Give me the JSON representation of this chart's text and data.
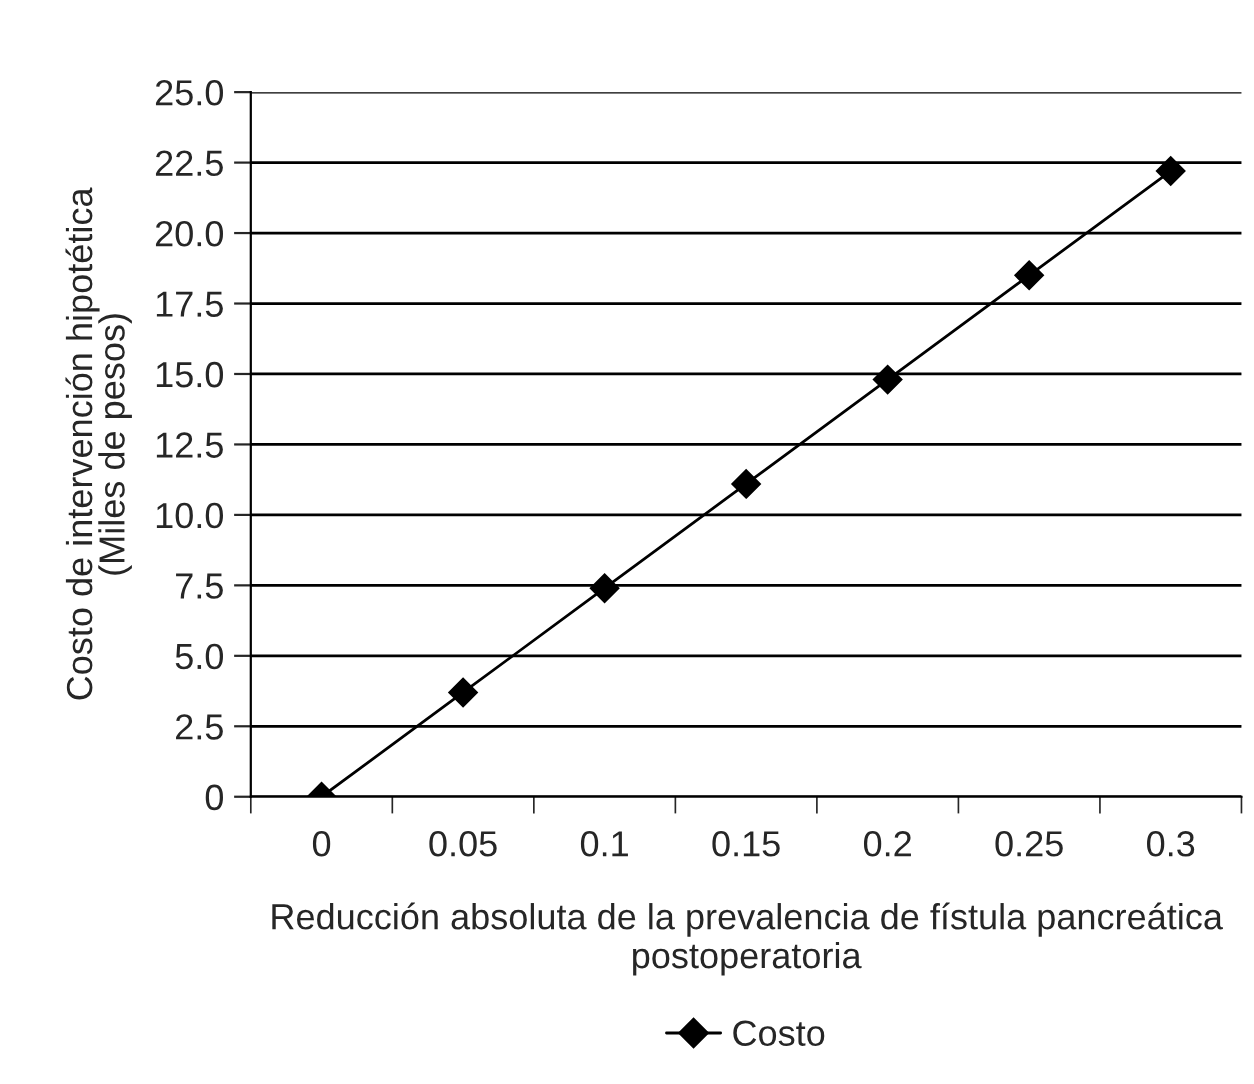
{
  "chart_data": {
    "type": "line",
    "xlabel": "Reducción absoluta de la prevalencia de fístula pancreática postoperatoria",
    "ylabel": "Costo de intervención hipotética\n(Miles de pesos)",
    "categories": [
      "0",
      "0.05",
      "0.1",
      "0.15",
      "0.2",
      "0.25",
      "0.3"
    ],
    "series": [
      {
        "name": "Costo",
        "color": "#000000",
        "values": [
          0,
          3.7,
          7.4,
          11.1,
          14.8,
          18.5,
          22.2
        ]
      }
    ],
    "ylim": [
      0,
      25
    ],
    "yticks": [
      0,
      {
        "value": 2.5,
        "label": "2.5"
      },
      {
        "value": 5,
        "label": "5.0"
      },
      {
        "value": 7.5,
        "label": "7.5"
      },
      {
        "value": 10,
        "label": "10.0"
      },
      {
        "value": 12.5,
        "label": "12.5"
      },
      {
        "value": 15,
        "label": "15.0"
      },
      {
        "value": 17.5,
        "label": "17.5"
      },
      {
        "value": 20,
        "label": "20.0"
      },
      {
        "value": 22.5,
        "label": "22.5"
      },
      {
        "value": 25,
        "label": "25.0"
      }
    ],
    "grid": "y",
    "legend": "bottom",
    "marker": "diamond",
    "line_style": "solid"
  }
}
